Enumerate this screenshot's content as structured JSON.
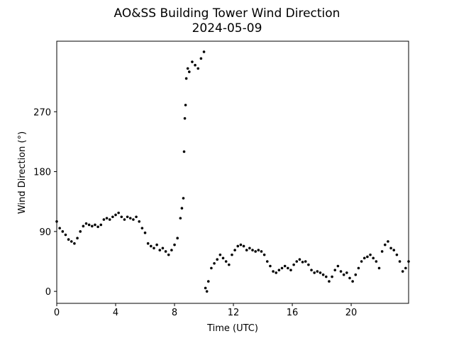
{
  "chart_data": {
    "type": "scatter",
    "title": "AO&SS Building Tower Wind Direction",
    "subtitle": "2024-05-09",
    "x_label": "Time (UTC)",
    "y_label": "Wind Direction (°)",
    "color": "#000000",
    "xlim": [
      0,
      23.9
    ],
    "ylim": [
      -18,
      376
    ],
    "xticks": [
      0,
      4,
      8,
      12,
      16,
      20
    ],
    "yticks": [
      0,
      90,
      180,
      270
    ],
    "x": [
      0.0,
      0.2,
      0.4,
      0.6,
      0.8,
      1.0,
      1.2,
      1.4,
      1.6,
      1.8,
      2.0,
      2.2,
      2.4,
      2.6,
      2.8,
      3.0,
      3.2,
      3.4,
      3.6,
      3.8,
      4.0,
      4.2,
      4.4,
      4.6,
      4.8,
      5.0,
      5.2,
      5.4,
      5.6,
      5.8,
      6.0,
      6.2,
      6.4,
      6.6,
      6.8,
      7.0,
      7.2,
      7.4,
      7.6,
      7.8,
      8.0,
      8.2,
      8.4,
      8.5,
      8.6,
      8.65,
      8.7,
      8.75,
      8.8,
      8.9,
      9.0,
      9.2,
      9.4,
      9.6,
      9.8,
      10.0,
      10.1,
      10.2,
      10.3,
      10.5,
      10.7,
      10.9,
      11.1,
      11.3,
      11.5,
      11.7,
      11.9,
      12.1,
      12.3,
      12.5,
      12.7,
      12.9,
      13.1,
      13.3,
      13.5,
      13.7,
      13.9,
      14.1,
      14.3,
      14.5,
      14.7,
      14.9,
      15.1,
      15.3,
      15.5,
      15.7,
      15.9,
      16.1,
      16.3,
      16.5,
      16.7,
      16.9,
      17.1,
      17.3,
      17.5,
      17.7,
      17.9,
      18.1,
      18.3,
      18.5,
      18.7,
      18.9,
      19.1,
      19.3,
      19.5,
      19.7,
      19.9,
      20.1,
      20.3,
      20.5,
      20.7,
      20.9,
      21.1,
      21.3,
      21.5,
      21.7,
      21.9,
      22.1,
      22.3,
      22.5,
      22.7,
      22.9,
      23.1,
      23.3,
      23.5,
      23.7,
      23.9
    ],
    "values": [
      105,
      95,
      90,
      85,
      78,
      75,
      72,
      80,
      90,
      98,
      102,
      100,
      98,
      100,
      97,
      100,
      108,
      110,
      108,
      112,
      115,
      118,
      112,
      108,
      112,
      110,
      108,
      112,
      105,
      95,
      88,
      72,
      68,
      65,
      70,
      62,
      65,
      60,
      55,
      62,
      70,
      80,
      110,
      125,
      140,
      210,
      260,
      280,
      320,
      335,
      330,
      345,
      340,
      335,
      350,
      360,
      5,
      0,
      15,
      35,
      42,
      48,
      55,
      50,
      45,
      40,
      55,
      62,
      68,
      70,
      68,
      62,
      65,
      62,
      60,
      62,
      60,
      55,
      45,
      38,
      30,
      28,
      32,
      35,
      38,
      35,
      32,
      40,
      45,
      48,
      44,
      45,
      40,
      32,
      28,
      30,
      28,
      25,
      22,
      15,
      22,
      32,
      38,
      30,
      25,
      28,
      20,
      15,
      25,
      35,
      45,
      50,
      52,
      55,
      50,
      45,
      35,
      60,
      70,
      75,
      65,
      62,
      55,
      45,
      30,
      35,
      45
    ]
  }
}
